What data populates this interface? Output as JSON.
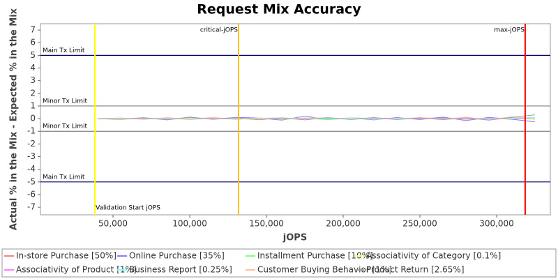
{
  "chart_data": {
    "type": "line",
    "title": "Request Mix Accuracy",
    "x_label": "jOPS",
    "y_label": "Actual % in the Mix - Expected % in the Mix",
    "xlim": [
      2700,
      335000
    ],
    "ylim": [
      -7.6,
      7.5
    ],
    "xticks": [
      {
        "value": 50000,
        "label": "50,000"
      },
      {
        "value": 100000,
        "label": "100,000"
      },
      {
        "value": 150000,
        "label": "150,000"
      },
      {
        "value": 200000,
        "label": "200,000"
      },
      {
        "value": 250000,
        "label": "250,000"
      },
      {
        "value": 300000,
        "label": "300,000"
      }
    ],
    "yticks": [
      -7,
      -6,
      -5,
      -4,
      -3,
      -2,
      -1,
      0,
      1,
      2,
      3,
      4,
      5,
      6,
      7
    ],
    "x": [
      40000,
      55000,
      70000,
      85000,
      100000,
      115000,
      130000,
      145000,
      160000,
      175000,
      190000,
      205000,
      220000,
      235000,
      250000,
      265000,
      280000,
      295000,
      310000,
      325000
    ],
    "series": [
      {
        "name": "In-store Purchase [50%]",
        "color": "#ff7f7f",
        "values": [
          0,
          0.02,
          -0.03,
          0.05,
          -0.04,
          0.03,
          0,
          -0.05,
          0.04,
          0.02,
          -0.03,
          0.05,
          0.01,
          -0.04,
          0.03,
          0.06,
          -0.02,
          0.04,
          -0.05,
          0.08
        ]
      },
      {
        "name": "Online Purchase [35%]",
        "color": "#8080ff",
        "values": [
          0,
          -0.05,
          0.08,
          -0.1,
          0.12,
          -0.06,
          0.1,
          0.05,
          -0.12,
          0.2,
          -0.08,
          0.06,
          -0.1,
          0.09,
          -0.07,
          0.12,
          -0.15,
          0.1,
          -0.05,
          -0.25
        ]
      },
      {
        "name": "Installment Purchase [10%]",
        "color": "#80ff80",
        "values": [
          0,
          0.05,
          -0.04,
          0.06,
          -0.08,
          0.07,
          -0.03,
          0.05,
          -0.06,
          0.04,
          -0.09,
          0.05,
          0.03,
          -0.05,
          0.08,
          -0.04,
          0.06,
          -0.03,
          0.1,
          0.05
        ]
      },
      {
        "name": "Associativity of Category [0.1%]",
        "color": "#ffff80",
        "values": [
          0,
          0,
          0.01,
          -0.01,
          0,
          0.02,
          -0.01,
          0,
          0.01,
          -0.02,
          0,
          0.01,
          0,
          -0.01,
          0.02,
          0,
          -0.01,
          0.01,
          0,
          0
        ]
      },
      {
        "name": "Associativity of Product [1%]",
        "color": "#ff80ff",
        "values": [
          0,
          0.03,
          -0.02,
          0.04,
          -0.03,
          0.02,
          -0.04,
          0.03,
          0.05,
          -0.02,
          0.03,
          -0.04,
          0.02,
          0.04,
          -0.03,
          0.02,
          -0.05,
          0.03,
          0.02,
          -0.03
        ]
      },
      {
        "name": "Business Report [0.25%]",
        "color": "#80ffff",
        "values": [
          0,
          -0.03,
          0.05,
          -0.02,
          0.06,
          -0.04,
          0.03,
          -0.05,
          0.02,
          0.04,
          -0.03,
          0.05,
          -0.06,
          0.02,
          0.04,
          -0.03,
          0.05,
          -0.02,
          0.03,
          0.1
        ]
      },
      {
        "name": "Customer Buying Behavior [1%]",
        "color": "#ffc0a0",
        "values": [
          0,
          0.04,
          -0.06,
          0.08,
          -0.05,
          0.1,
          -0.07,
          0.06,
          -0.04,
          0.05,
          0.07,
          -0.08,
          0.06,
          -0.05,
          0.09,
          -0.06,
          0.12,
          -0.1,
          0.15,
          -0.05
        ]
      },
      {
        "name": "Product Return [2.65%]",
        "color": "#a0a0a0",
        "values": [
          0,
          -0.06,
          0.05,
          -0.08,
          0.1,
          -0.05,
          0.07,
          -0.09,
          0.06,
          -0.1,
          0.08,
          -0.06,
          0.09,
          -0.07,
          0.05,
          -0.08,
          0.06,
          -0.12,
          0.1,
          0.3
        ]
      }
    ],
    "reference_lines": [
      {
        "label": "Main Tx Limit",
        "value": 5,
        "color": "#000066"
      },
      {
        "label": "Minor Tx Limit",
        "value": 1,
        "color": "#808080"
      },
      {
        "label": "Minor Tx Limit",
        "value": -1,
        "color": "#808080"
      },
      {
        "label": "Main Tx Limit",
        "value": -5,
        "color": "#000066"
      }
    ],
    "markers": [
      {
        "label": "Validation Start jOPS",
        "value": 38200,
        "color": "#ffff00"
      },
      {
        "label": "critical-jOPS",
        "value": 131800,
        "color": "#ffc000"
      },
      {
        "label": "max-jOPS",
        "value": 318600,
        "color": "#ff0000"
      }
    ]
  }
}
